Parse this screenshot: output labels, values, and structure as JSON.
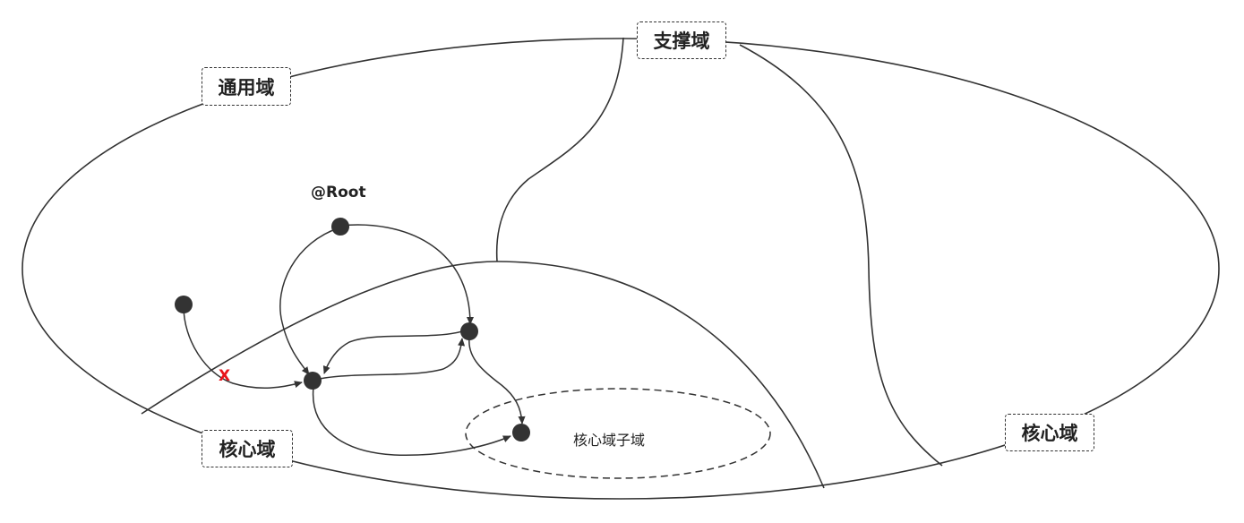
{
  "labels": {
    "supporting_domain": "支撑域",
    "generic_domain": "通用域",
    "core_domain_left": "核心域",
    "core_domain_right": "核心域",
    "core_subdomain": "核心域子域",
    "root": "@Root",
    "forbidden_mark": "X"
  },
  "colors": {
    "line": "#333333",
    "node": "#333333",
    "forbidden": "#e8141b",
    "background": "#ffffff"
  }
}
